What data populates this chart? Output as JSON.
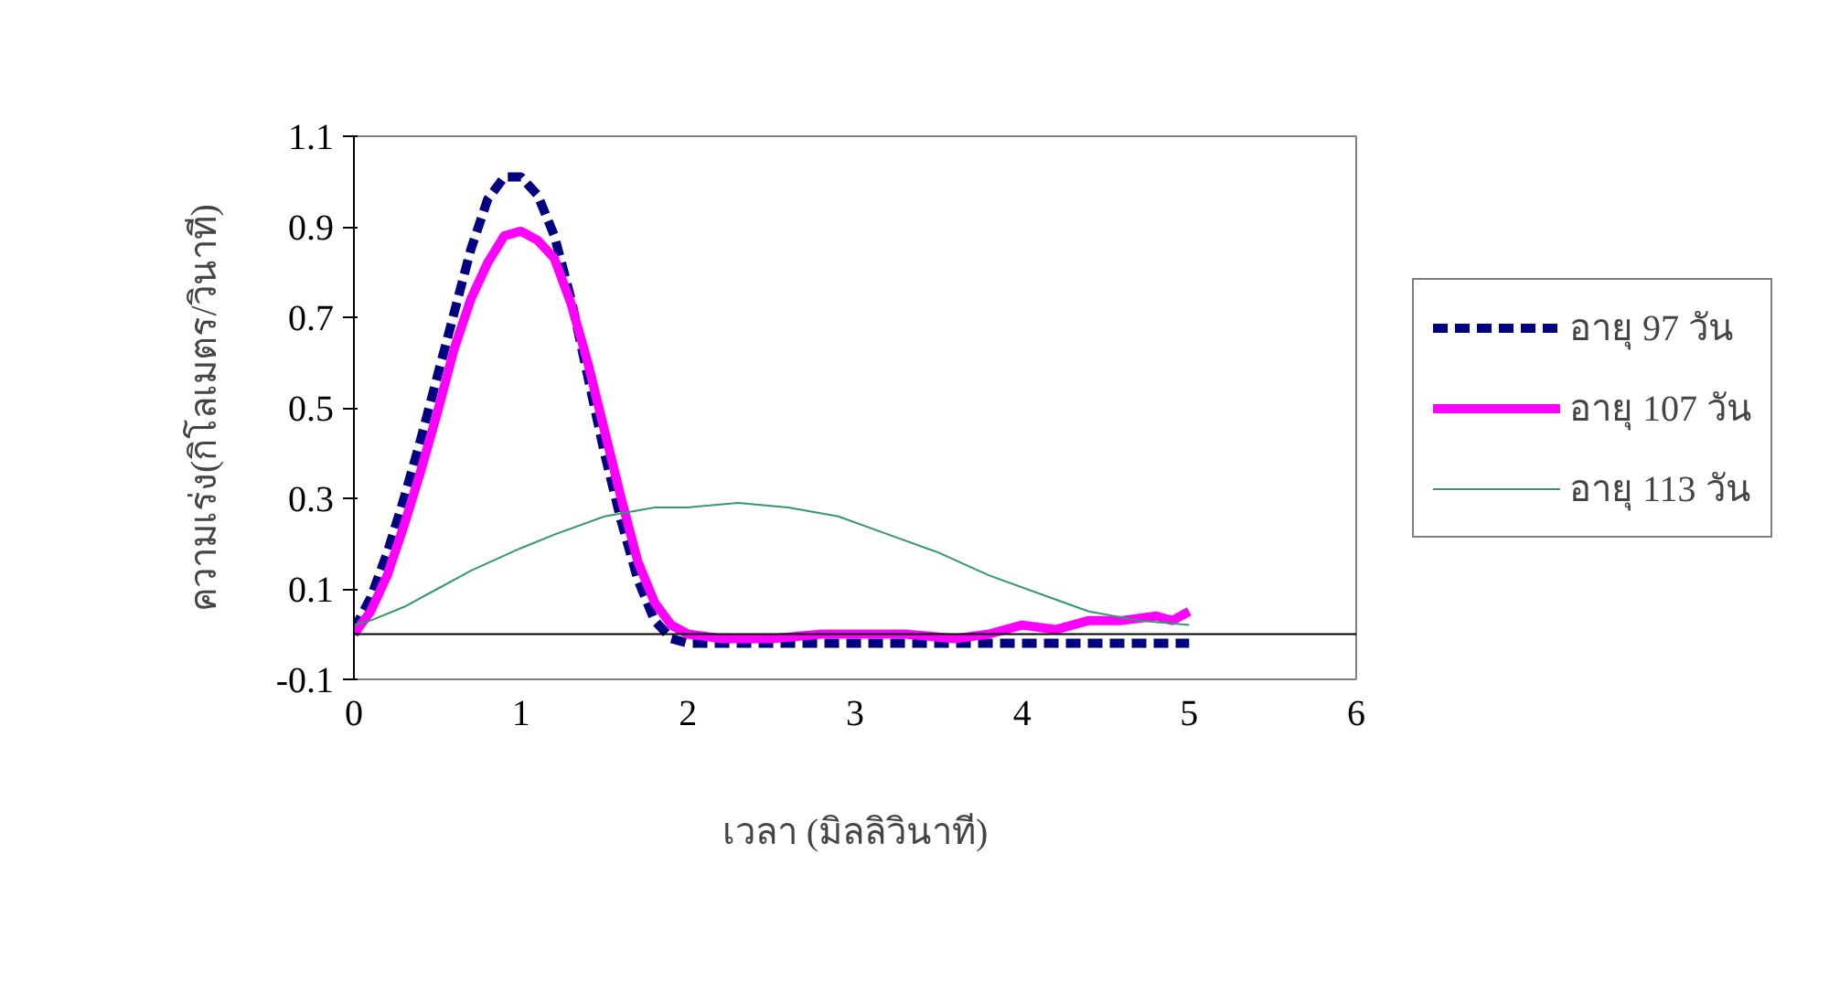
{
  "chart_data": {
    "type": "line",
    "xlabel": "เวลา (มิลลิวินาที)",
    "ylabel": "ความเร่ง(กิโลเมตร/วินาที)",
    "xlim": [
      0,
      6
    ],
    "xticks": [
      0,
      1,
      2,
      3,
      4,
      5,
      6
    ],
    "ylim": [
      -0.1,
      1.1
    ],
    "yticks": [
      -0.1,
      0.1,
      0.3,
      0.5,
      0.7,
      0.9,
      1.1
    ],
    "grid": false,
    "legend": "right",
    "series": [
      {
        "name": "อายุ 97 วัน",
        "color": "#000080",
        "line_style": "dashed",
        "x": [
          0,
          0.1,
          0.2,
          0.3,
          0.4,
          0.5,
          0.6,
          0.7,
          0.8,
          0.9,
          1.0,
          1.1,
          1.2,
          1.3,
          1.4,
          1.5,
          1.6,
          1.7,
          1.8,
          1.9,
          2.0,
          5.0
        ],
        "values": [
          0.01,
          0.08,
          0.18,
          0.3,
          0.43,
          0.57,
          0.71,
          0.85,
          0.96,
          1.01,
          1.01,
          0.97,
          0.88,
          0.74,
          0.57,
          0.4,
          0.25,
          0.12,
          0.03,
          -0.01,
          -0.02,
          -0.02
        ]
      },
      {
        "name": "อายุ 107 วัน",
        "color": "#ff00ff",
        "line_style": "solid",
        "x": [
          0,
          0.1,
          0.2,
          0.3,
          0.4,
          0.5,
          0.6,
          0.7,
          0.8,
          0.9,
          1.0,
          1.1,
          1.2,
          1.3,
          1.4,
          1.5,
          1.6,
          1.7,
          1.8,
          1.9,
          2.0,
          2.2,
          2.5,
          2.8,
          3.0,
          3.3,
          3.6,
          3.8,
          4.0,
          4.2,
          4.4,
          4.6,
          4.8,
          4.9,
          5.0
        ],
        "values": [
          0.0,
          0.05,
          0.13,
          0.24,
          0.36,
          0.49,
          0.63,
          0.74,
          0.82,
          0.88,
          0.89,
          0.87,
          0.83,
          0.73,
          0.6,
          0.45,
          0.3,
          0.16,
          0.07,
          0.02,
          0.0,
          -0.01,
          -0.01,
          0.0,
          0.0,
          0.0,
          -0.01,
          0.0,
          0.02,
          0.01,
          0.03,
          0.03,
          0.04,
          0.03,
          0.05
        ]
      },
      {
        "name": "อายุ 113 วัน",
        "color": "#339966",
        "line_style": "solid",
        "x": [
          0,
          0.1,
          0.3,
          0.5,
          0.7,
          1.0,
          1.2,
          1.5,
          1.8,
          2.0,
          2.3,
          2.6,
          2.9,
          3.2,
          3.5,
          3.8,
          4.1,
          4.4,
          4.7,
          5.0
        ],
        "values": [
          0.02,
          0.03,
          0.06,
          0.1,
          0.14,
          0.19,
          0.22,
          0.26,
          0.28,
          0.28,
          0.29,
          0.28,
          0.26,
          0.22,
          0.18,
          0.13,
          0.09,
          0.05,
          0.03,
          0.02
        ]
      }
    ]
  }
}
